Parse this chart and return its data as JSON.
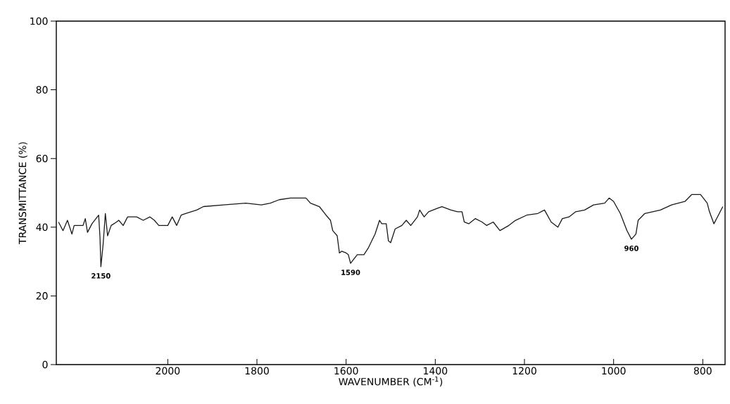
{
  "chart_data": {
    "type": "line",
    "xlabel": "WAVENUMBER (CM$^{-1}$)",
    "ylabel": "TRANSMITTANCE (%)",
    "xlim": [
      2250,
      750
    ],
    "ylim": [
      0,
      100
    ],
    "xticks": [
      2000,
      1800,
      1600,
      1400,
      1200,
      1000,
      800
    ],
    "yticks": [
      0,
      20,
      40,
      60,
      80,
      100
    ],
    "annotations": [
      {
        "text": "2150",
        "x": 2150,
        "y": 28.5
      },
      {
        "text": "1590",
        "x": 1590,
        "y": 29.5
      },
      {
        "text": "960",
        "x": 960,
        "y": 36.5
      }
    ],
    "series": [
      {
        "color": "#1a1a1a",
        "x": [
          2245,
          2235,
          2225,
          2215,
          2210,
          2190,
          2185,
          2180,
          2170,
          2155,
          2152,
          2150,
          2145,
          2140,
          2135,
          2127,
          2115,
          2110,
          2100,
          2090,
          2070,
          2055,
          2040,
          2030,
          2020,
          2000,
          1990,
          1980,
          1970,
          1960,
          1935,
          1920,
          1875,
          1825,
          1790,
          1770,
          1750,
          1725,
          1715,
          1690,
          1680,
          1660,
          1645,
          1635,
          1630,
          1620,
          1615,
          1610,
          1600,
          1595,
          1590,
          1575,
          1560,
          1550,
          1535,
          1525,
          1520,
          1510,
          1505,
          1500,
          1490,
          1475,
          1465,
          1455,
          1440,
          1435,
          1425,
          1415,
          1395,
          1385,
          1365,
          1350,
          1340,
          1335,
          1325,
          1310,
          1295,
          1285,
          1270,
          1255,
          1235,
          1220,
          1195,
          1170,
          1155,
          1140,
          1125,
          1115,
          1100,
          1085,
          1065,
          1045,
          1020,
          1010,
          1000,
          985,
          970,
          960,
          950,
          945,
          930,
          895,
          870,
          840,
          825,
          805,
          790,
          785,
          775,
          765,
          755
        ],
        "values": [
          41.5,
          39,
          42,
          38,
          40.5,
          40.5,
          42.5,
          38.5,
          41,
          43.5,
          37,
          28.5,
          35,
          44,
          37.5,
          40.5,
          41.5,
          42,
          40.5,
          43,
          43,
          42,
          43,
          42,
          40.5,
          40.5,
          43,
          40.5,
          43.5,
          44,
          45,
          46,
          46.5,
          47,
          46.5,
          47,
          48,
          48.5,
          48.5,
          48.5,
          47,
          46,
          43.5,
          42,
          39,
          37.5,
          32.5,
          33,
          32.5,
          32,
          29.5,
          32,
          32,
          34,
          38,
          42,
          41,
          41,
          36,
          35.5,
          39.5,
          40.5,
          42,
          40.5,
          43,
          45,
          43,
          44.5,
          45.5,
          46,
          45,
          44.5,
          44.5,
          41.5,
          41,
          42.5,
          41.5,
          40.5,
          41.5,
          39,
          40.5,
          42,
          43.5,
          44,
          45,
          41.5,
          40,
          42.5,
          43,
          44.5,
          45,
          46.5,
          47,
          48.5,
          47.5,
          44,
          39,
          36.5,
          38,
          42,
          44,
          45,
          46.5,
          47.5,
          49.5,
          49.5,
          47,
          44.5,
          41,
          43.5,
          46
        ]
      }
    ]
  }
}
